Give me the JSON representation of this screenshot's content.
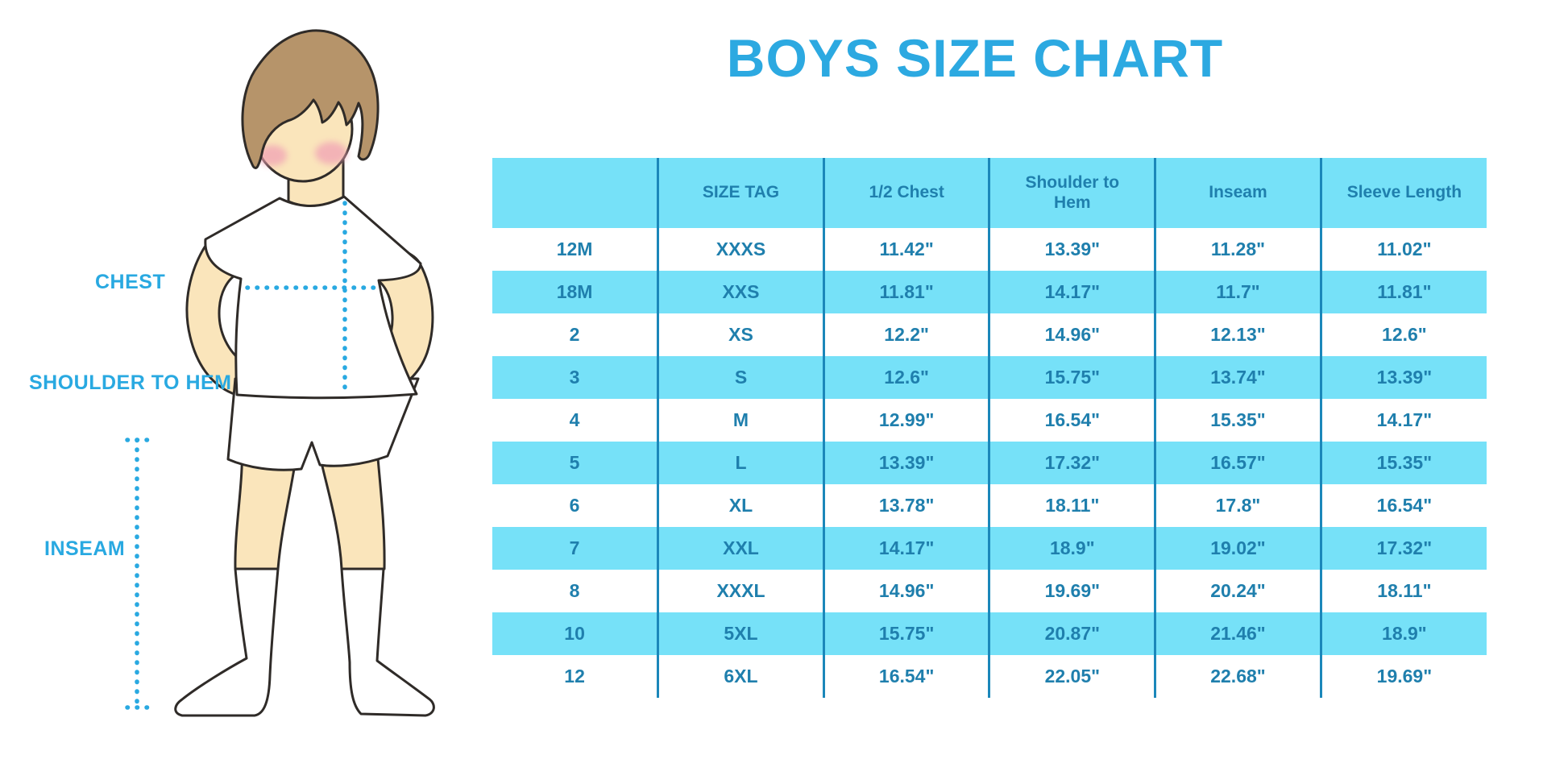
{
  "title": "BOYS SIZE CHART",
  "figure": {
    "labels": {
      "chest": "CHEST",
      "shoulder_to_hem": "SHOULDER TO HEM",
      "inseam": "INSEAM"
    }
  },
  "chart_data": {
    "type": "table",
    "title": "BOYS SIZE CHART",
    "columns": [
      "",
      "SIZE TAG",
      "1/2 Chest",
      "Shoulder to Hem",
      "Inseam",
      "Sleeve Length"
    ],
    "rows": [
      [
        "12M",
        "XXXS",
        "11.42\"",
        "13.39\"",
        "11.28\"",
        "11.02\""
      ],
      [
        "18M",
        "XXS",
        "11.81\"",
        "14.17\"",
        "11.7\"",
        "11.81\""
      ],
      [
        "2",
        "XS",
        "12.2\"",
        "14.96\"",
        "12.13\"",
        "12.6\""
      ],
      [
        "3",
        "S",
        "12.6\"",
        "15.75\"",
        "13.74\"",
        "13.39\""
      ],
      [
        "4",
        "M",
        "12.99\"",
        "16.54\"",
        "15.35\"",
        "14.17\""
      ],
      [
        "5",
        "L",
        "13.39\"",
        "17.32\"",
        "16.57\"",
        "15.35\""
      ],
      [
        "6",
        "XL",
        "13.78\"",
        "18.11\"",
        "17.8\"",
        "16.54\""
      ],
      [
        "7",
        "XXL",
        "14.17\"",
        "18.9\"",
        "19.02\"",
        "17.32\""
      ],
      [
        "8",
        "XXXL",
        "14.96\"",
        "19.69\"",
        "20.24\"",
        "18.11\""
      ],
      [
        "10",
        "5XL",
        "15.75\"",
        "20.87\"",
        "21.46\"",
        "18.9\""
      ],
      [
        "12",
        "6XL",
        "16.54\"",
        "22.05\"",
        "22.68\"",
        "19.69\""
      ]
    ]
  },
  "colors": {
    "accent_blue": "#29A9E1",
    "title_blue": "#2CA9E1",
    "cell_fill": "#76E1F8",
    "table_text": "#1F7FAD",
    "divider": "#1B87BA",
    "skin": "#FAE5BB",
    "hair": "#B6946A"
  }
}
